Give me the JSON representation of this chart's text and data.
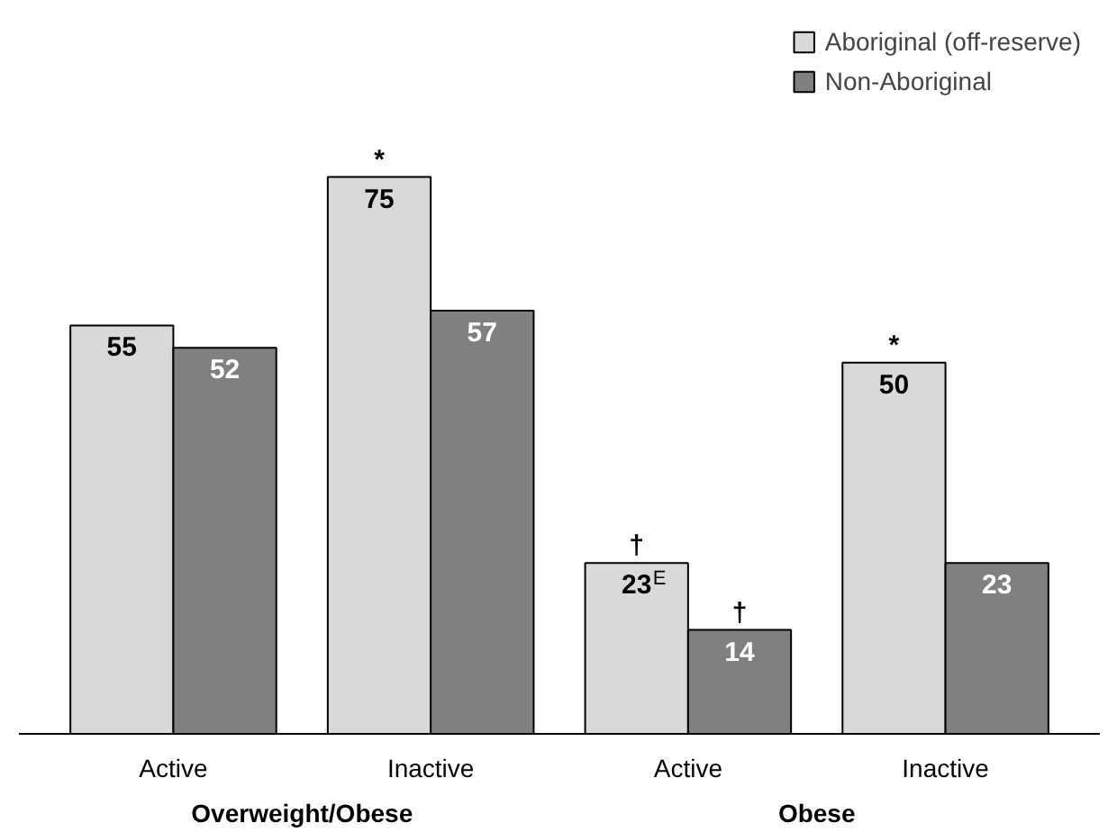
{
  "chart_data": {
    "type": "bar",
    "categories": [
      "Active",
      "Inactive",
      "Active",
      "Inactive"
    ],
    "series": [
      {
        "name": "Aboriginal (off-reserve)",
        "color": "#d9d9d9",
        "values": [
          55,
          75,
          23,
          50
        ],
        "value_labels": [
          "55",
          "75",
          "23$^{E}$",
          "50"
        ]
      },
      {
        "name": "Non-Aboriginal",
        "color": "#808080",
        "values": [
          52,
          57,
          14,
          23
        ],
        "value_labels": [
          "52",
          "57",
          "14",
          "23"
        ]
      }
    ],
    "annotations": [
      {
        "text": "*",
        "y": 75
      },
      {
        "text": "*",
        "y": 50
      },
      {
        "text": "†",
        "y": 23
      },
      {
        "text": "†",
        "y": 14
      },
      "Overweight/Obese",
      "Obese"
    ],
    "legend": "top right",
    "grid": false
  }
}
